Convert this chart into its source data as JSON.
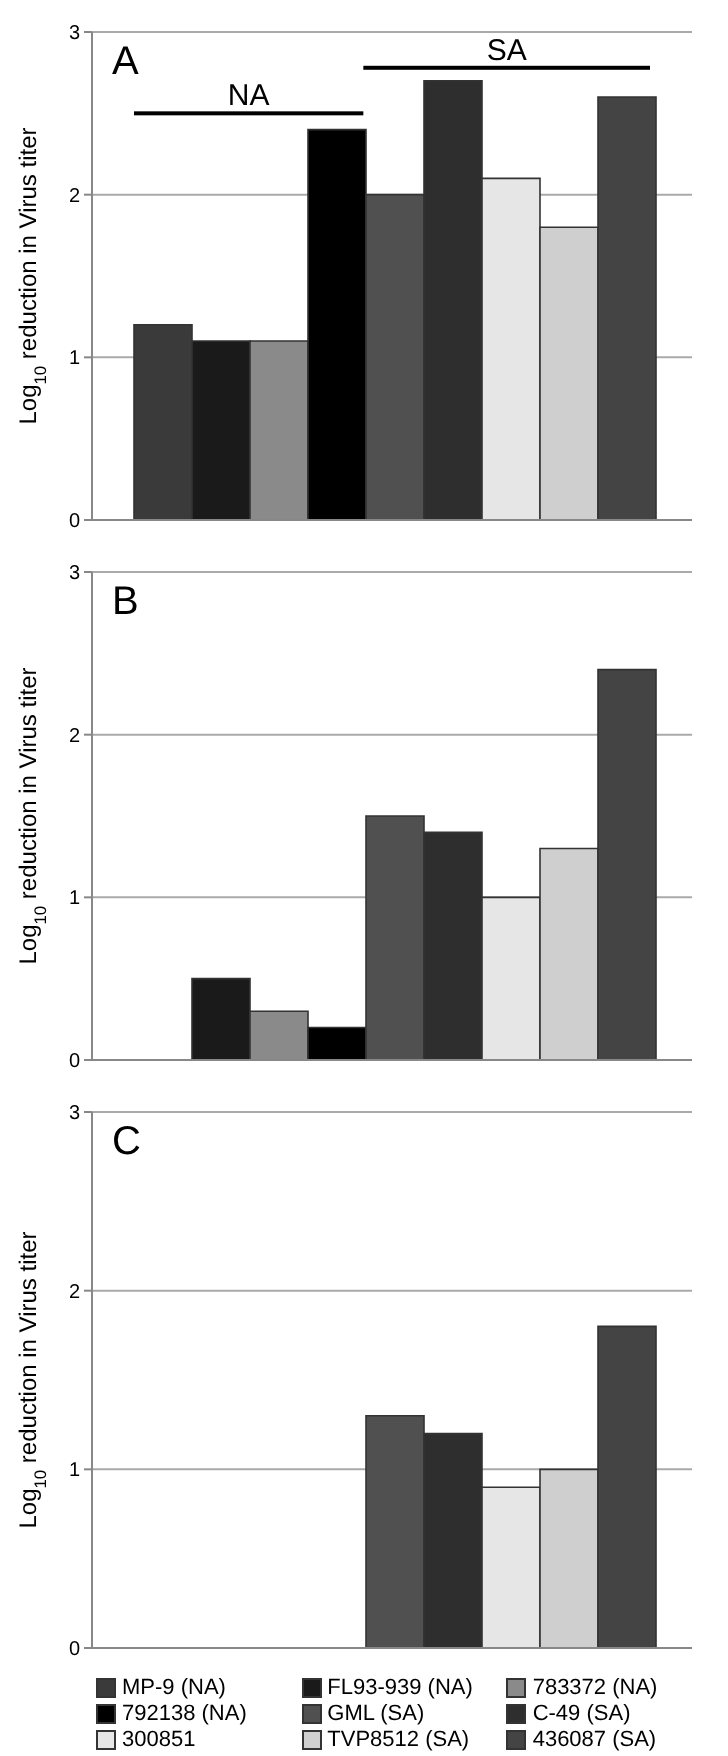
{
  "chart_data": [
    {
      "type": "bar",
      "title": "A",
      "categories": [
        null
      ],
      "ylabel": "Log$_{10}$ reduction in Virus titer",
      "ylim": [
        0,
        3
      ],
      "yticks": [
        0,
        1,
        2,
        3
      ],
      "grid": "y",
      "annotations": [
        "NA",
        "SA"
      ],
      "series": [
        {
          "color": "#3a3a3a",
          "values": [
            1.2
          ]
        },
        {
          "color": "#1a1a1a",
          "values": [
            1.1
          ]
        },
        {
          "color": "#8a8a8a",
          "values": [
            1.1
          ]
        },
        {
          "color": "#000000",
          "values": [
            2.4
          ]
        },
        {
          "color": "#505050",
          "values": [
            2.0
          ]
        },
        {
          "color": "#2e2e2e",
          "values": [
            2.7
          ]
        },
        {
          "color": "#e6e6e6",
          "values": [
            2.1
          ]
        },
        {
          "color": "#cfcfcf",
          "values": [
            1.8
          ]
        },
        {
          "color": "#444444",
          "values": [
            2.6
          ]
        }
      ]
    },
    {
      "type": "bar",
      "title": "B",
      "categories": [
        null
      ],
      "ylabel": "Log$_{10}$ reduction in Virus titer",
      "ylim": [
        0,
        3
      ],
      "yticks": [
        0,
        1,
        2,
        3
      ],
      "grid": "y",
      "series": [
        {
          "color": "#3a3a3a",
          "values": [
            null
          ]
        },
        {
          "color": "#1a1a1a",
          "values": [
            0.5
          ]
        },
        {
          "color": "#8a8a8a",
          "values": [
            0.3
          ]
        },
        {
          "color": "#000000",
          "values": [
            0.2
          ]
        },
        {
          "color": "#505050",
          "values": [
            1.5
          ]
        },
        {
          "color": "#2e2e2e",
          "values": [
            1.4
          ]
        },
        {
          "color": "#e6e6e6",
          "values": [
            1.0
          ]
        },
        {
          "color": "#cfcfcf",
          "values": [
            1.3
          ]
        },
        {
          "color": "#444444",
          "values": [
            2.4
          ]
        }
      ]
    },
    {
      "type": "bar",
      "title": "C",
      "categories": [
        null
      ],
      "ylabel": "Log$_{10}$ reduction in Virus titer",
      "ylim": [
        0,
        3
      ],
      "yticks": [
        0,
        1,
        2,
        3
      ],
      "grid": "y",
      "legend": "bottom",
      "series": [
        {
          "name": "MP-9 (NA)",
          "color": "#3a3a3a",
          "values": [
            null
          ]
        },
        {
          "name": "FL93-939 (NA)",
          "color": "#1a1a1a",
          "values": [
            null
          ]
        },
        {
          "name": "783372 (NA)",
          "color": "#8a8a8a",
          "values": [
            null
          ]
        },
        {
          "name": "792138 (NA)",
          "color": "#000000",
          "values": [
            null
          ]
        },
        {
          "name": "GML (SA)",
          "color": "#505050",
          "values": [
            1.3
          ]
        },
        {
          "name": "C-49 (SA)",
          "color": "#2e2e2e",
          "values": [
            1.2
          ]
        },
        {
          "name": "300851",
          "color": "#e6e6e6",
          "values": [
            0.9
          ]
        },
        {
          "name": "TVP8512 (SA)",
          "color": "#cfcfcf",
          "values": [
            1.0
          ]
        },
        {
          "name": "436087 (SA)",
          "color": "#444444",
          "values": [
            1.8
          ]
        }
      ]
    }
  ]
}
